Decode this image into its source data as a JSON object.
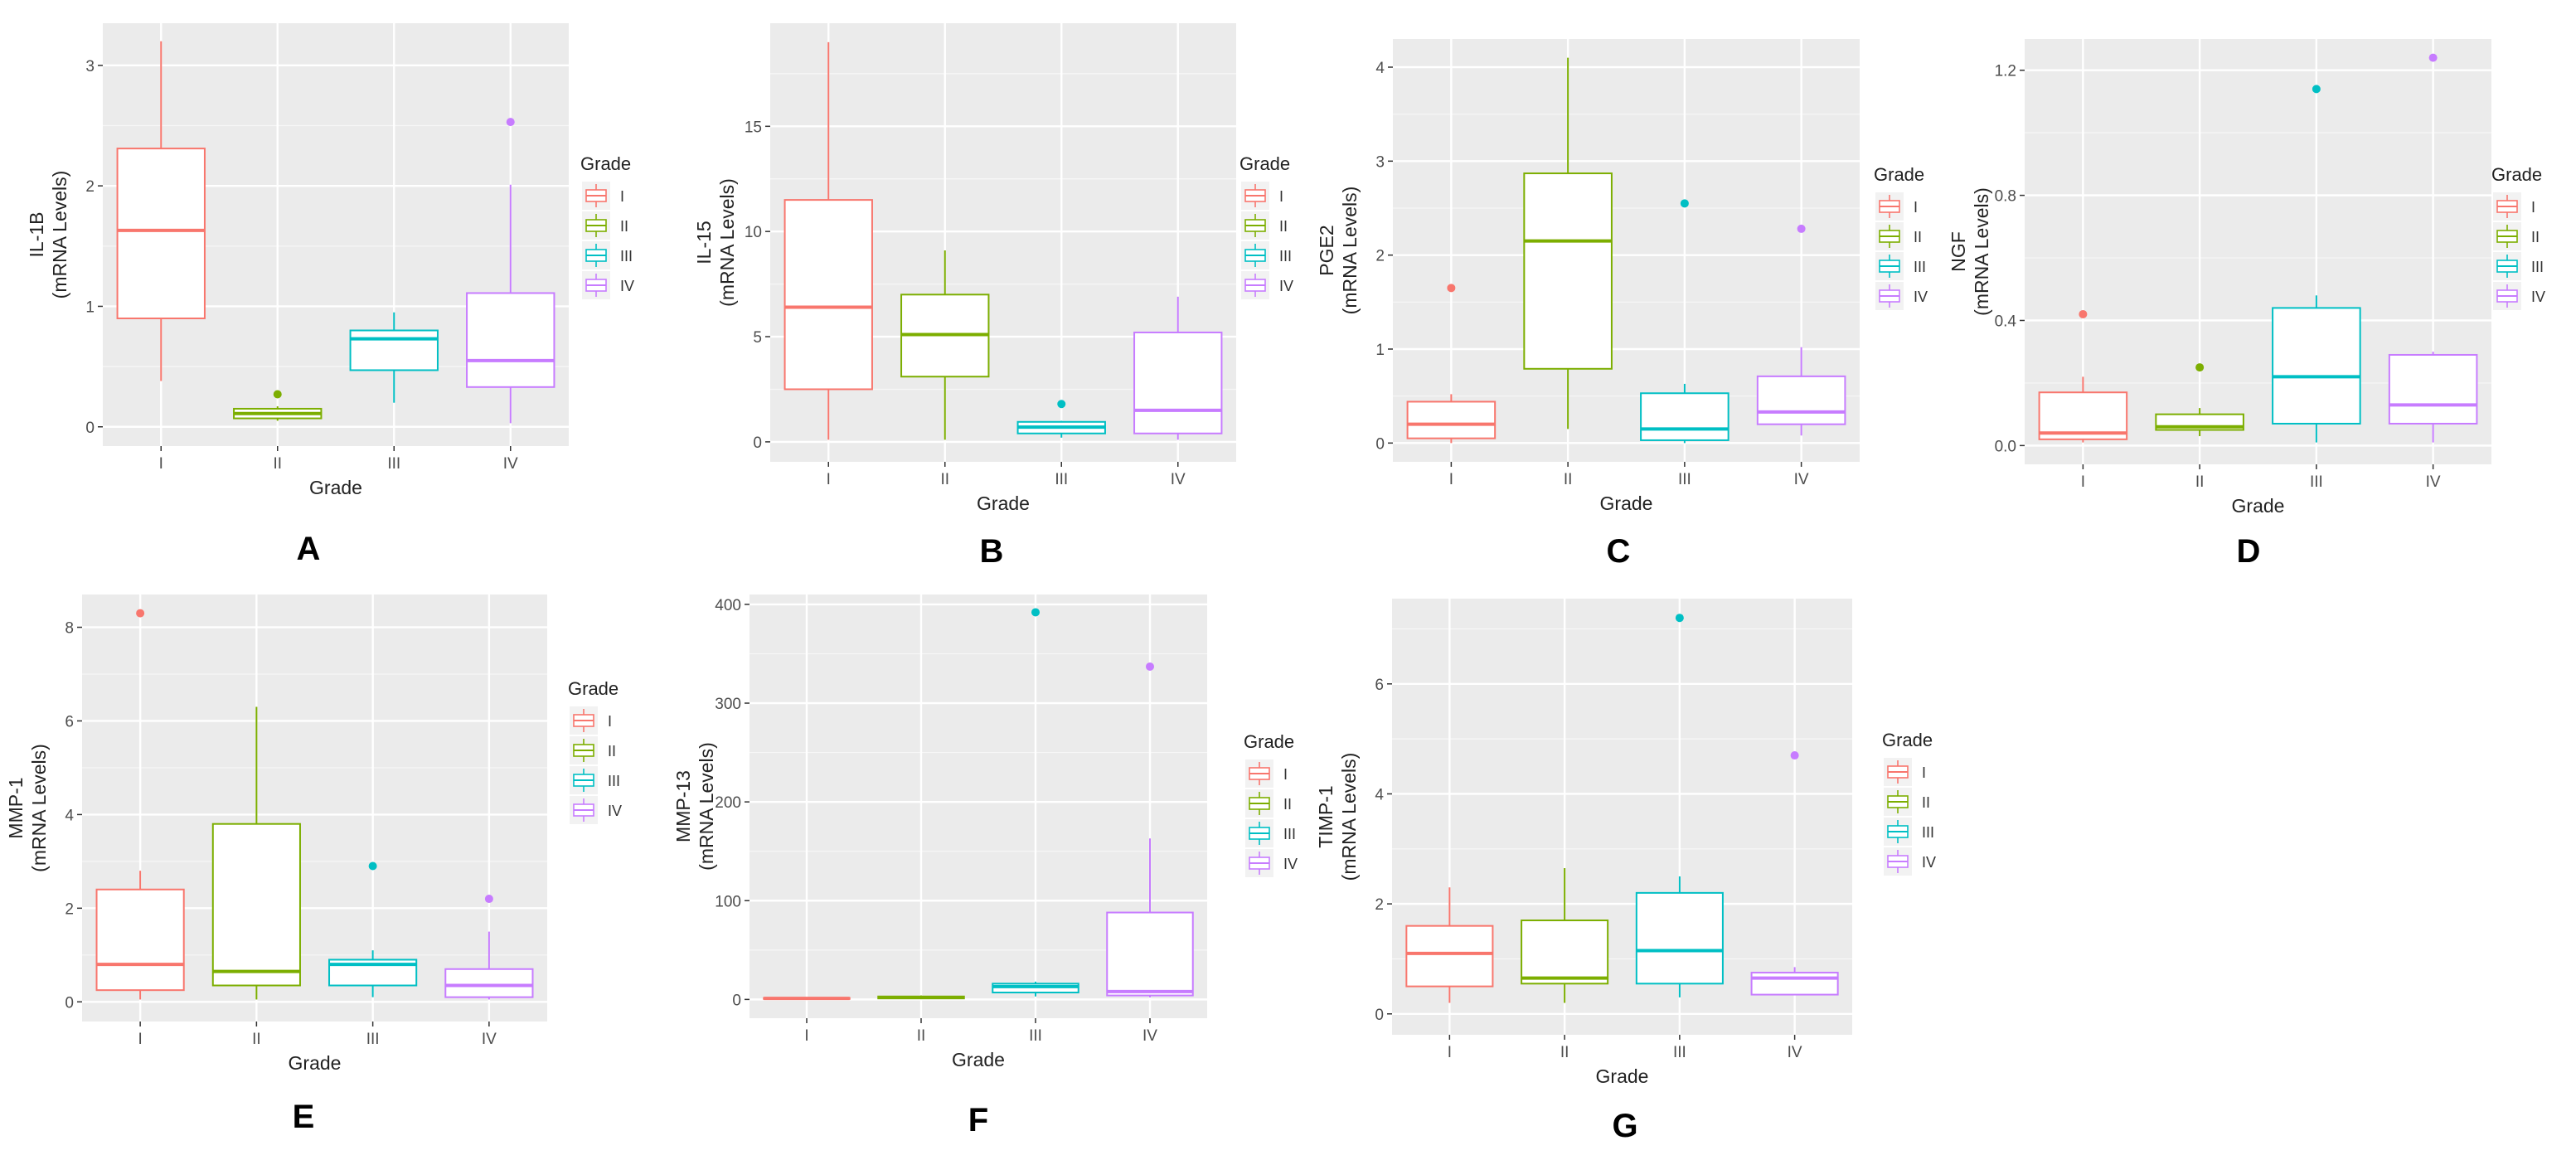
{
  "legend_title": "Grade",
  "chart_data": [
    {
      "type": "boxplot",
      "panel_letter": "A",
      "xlabel": "Grade",
      "ylabel_line1": "IL-1B",
      "ylabel_line2": "(mRNA Levels)",
      "ylim": [
        -0.16,
        3.35
      ],
      "yticks": [
        0,
        1,
        2,
        3
      ],
      "groups": [
        {
          "name": "I",
          "color": "#F8766D",
          "min": 0.38,
          "q1": 0.9,
          "median": 1.63,
          "q3": 2.31,
          "max": 3.2,
          "outliers": []
        },
        {
          "name": "II",
          "color": "#7CAE00",
          "min": 0.05,
          "q1": 0.07,
          "median": 0.11,
          "q3": 0.15,
          "max": 0.17,
          "outliers": [
            0.27
          ]
        },
        {
          "name": "III",
          "color": "#00BFC4",
          "min": 0.2,
          "q1": 0.47,
          "median": 0.73,
          "q3": 0.8,
          "max": 0.95,
          "outliers": []
        },
        {
          "name": "IV",
          "color": "#C77CFF",
          "min": 0.03,
          "q1": 0.33,
          "median": 0.55,
          "q3": 1.11,
          "max": 2.01,
          "outliers": [
            2.53
          ]
        }
      ]
    },
    {
      "type": "boxplot",
      "panel_letter": "B",
      "xlabel": "Grade",
      "ylabel_line1": "IL-15",
      "ylabel_line2": "(mRNA Levels)",
      "ylim": [
        -0.95,
        19.9
      ],
      "yticks": [
        0,
        5,
        10,
        15
      ],
      "groups": [
        {
          "name": "I",
          "color": "#F8766D",
          "min": 0.1,
          "q1": 2.5,
          "median": 6.4,
          "q3": 11.5,
          "max": 19.0,
          "outliers": []
        },
        {
          "name": "II",
          "color": "#7CAE00",
          "min": 0.1,
          "q1": 3.1,
          "median": 5.1,
          "q3": 7.0,
          "max": 9.1,
          "outliers": []
        },
        {
          "name": "III",
          "color": "#00BFC4",
          "min": 0.2,
          "q1": 0.4,
          "median": 0.7,
          "q3": 0.95,
          "max": 1.0,
          "outliers": [
            1.8
          ]
        },
        {
          "name": "IV",
          "color": "#C77CFF",
          "min": 0.1,
          "q1": 0.4,
          "median": 1.5,
          "q3": 5.2,
          "max": 6.9,
          "outliers": []
        }
      ]
    },
    {
      "type": "boxplot",
      "panel_letter": "C",
      "xlabel": "Grade",
      "ylabel_line1": "PGE2",
      "ylabel_line2": "(mRNA Levels)",
      "ylim": [
        -0.2,
        4.3
      ],
      "yticks": [
        0,
        1,
        2,
        3,
        4
      ],
      "groups": [
        {
          "name": "I",
          "color": "#F8766D",
          "min": 0.0,
          "q1": 0.05,
          "median": 0.2,
          "q3": 0.44,
          "max": 0.52,
          "outliers": [
            1.65
          ]
        },
        {
          "name": "II",
          "color": "#7CAE00",
          "min": 0.15,
          "q1": 0.79,
          "median": 2.15,
          "q3": 2.87,
          "max": 4.1,
          "outliers": []
        },
        {
          "name": "III",
          "color": "#00BFC4",
          "min": 0.0,
          "q1": 0.03,
          "median": 0.15,
          "q3": 0.53,
          "max": 0.63,
          "outliers": [
            2.55
          ]
        },
        {
          "name": "IV",
          "color": "#C77CFF",
          "min": 0.08,
          "q1": 0.2,
          "median": 0.33,
          "q3": 0.71,
          "max": 1.02,
          "outliers": [
            2.28
          ]
        }
      ]
    },
    {
      "type": "boxplot",
      "panel_letter": "D",
      "xlabel": "Grade",
      "ylabel_line1": "NGF",
      "ylabel_line2": "(mRNA Levels)",
      "ylim": [
        -0.06,
        1.3
      ],
      "yticks": [
        0.0,
        0.4,
        0.8,
        1.2
      ],
      "ytick_labels": [
        "0.0",
        "0.4",
        "0.8",
        "1.2"
      ],
      "groups": [
        {
          "name": "I",
          "color": "#F8766D",
          "min": 0.01,
          "q1": 0.02,
          "median": 0.04,
          "q3": 0.17,
          "max": 0.22,
          "outliers": [
            0.42
          ]
        },
        {
          "name": "II",
          "color": "#7CAE00",
          "min": 0.03,
          "q1": 0.05,
          "median": 0.06,
          "q3": 0.1,
          "max": 0.12,
          "outliers": [
            0.25
          ]
        },
        {
          "name": "III",
          "color": "#00BFC4",
          "min": 0.01,
          "q1": 0.07,
          "median": 0.22,
          "q3": 0.44,
          "max": 0.48,
          "outliers": [
            1.14
          ]
        },
        {
          "name": "IV",
          "color": "#C77CFF",
          "min": 0.01,
          "q1": 0.07,
          "median": 0.13,
          "q3": 0.29,
          "max": 0.3,
          "outliers": [
            1.24
          ]
        }
      ]
    },
    {
      "type": "boxplot",
      "panel_letter": "E",
      "xlabel": "Grade",
      "ylabel_line1": "MMP-1",
      "ylabel_line2": "(mRNA Levels)",
      "ylim": [
        -0.42,
        8.7
      ],
      "yticks": [
        0,
        2,
        4,
        6,
        8
      ],
      "groups": [
        {
          "name": "I",
          "color": "#F8766D",
          "min": 0.05,
          "q1": 0.25,
          "median": 0.8,
          "q3": 2.4,
          "max": 2.8,
          "outliers": [
            8.3
          ]
        },
        {
          "name": "II",
          "color": "#7CAE00",
          "min": 0.05,
          "q1": 0.35,
          "median": 0.65,
          "q3": 3.8,
          "max": 6.3,
          "outliers": []
        },
        {
          "name": "III",
          "color": "#00BFC4",
          "min": 0.1,
          "q1": 0.35,
          "median": 0.8,
          "q3": 0.9,
          "max": 1.1,
          "outliers": [
            2.9
          ]
        },
        {
          "name": "IV",
          "color": "#C77CFF",
          "min": 0.05,
          "q1": 0.1,
          "median": 0.35,
          "q3": 0.7,
          "max": 1.5,
          "outliers": [
            2.2
          ]
        }
      ]
    },
    {
      "type": "boxplot",
      "panel_letter": "F",
      "xlabel": "Grade",
      "ylabel_line1": "MMP-13",
      "ylabel_line2": "(mRNA Levels)",
      "ylim": [
        -19,
        410
      ],
      "yticks": [
        0,
        100,
        200,
        300,
        400
      ],
      "groups": [
        {
          "name": "I",
          "color": "#F8766D",
          "min": 0.2,
          "q1": 0.5,
          "median": 1.0,
          "q3": 1.5,
          "max": 2.0,
          "outliers": []
        },
        {
          "name": "II",
          "color": "#7CAE00",
          "min": 0.5,
          "q1": 1.0,
          "median": 2.0,
          "q3": 3.0,
          "max": 4.0,
          "outliers": []
        },
        {
          "name": "III",
          "color": "#00BFC4",
          "min": 3,
          "q1": 7,
          "median": 13,
          "q3": 16,
          "max": 18,
          "outliers": [
            392
          ]
        },
        {
          "name": "IV",
          "color": "#C77CFF",
          "min": 2,
          "q1": 4,
          "median": 8,
          "q3": 88,
          "max": 163,
          "outliers": [
            337
          ]
        }
      ]
    },
    {
      "type": "boxplot",
      "panel_letter": "G",
      "xlabel": "Grade",
      "ylabel_line1": "TIMP-1",
      "ylabel_line2": "(mRNA Levels)",
      "ylim": [
        -0.38,
        7.55
      ],
      "yticks": [
        0,
        2,
        4,
        6
      ],
      "groups": [
        {
          "name": "I",
          "color": "#F8766D",
          "min": 0.2,
          "q1": 0.5,
          "median": 1.1,
          "q3": 1.6,
          "max": 2.3,
          "outliers": []
        },
        {
          "name": "II",
          "color": "#7CAE00",
          "min": 0.2,
          "q1": 0.55,
          "median": 0.65,
          "q3": 1.7,
          "max": 2.65,
          "outliers": []
        },
        {
          "name": "III",
          "color": "#00BFC4",
          "min": 0.3,
          "q1": 0.55,
          "median": 1.15,
          "q3": 2.2,
          "max": 2.5,
          "outliers": [
            7.2
          ]
        },
        {
          "name": "IV",
          "color": "#C77CFF",
          "min": 0.35,
          "q1": 0.35,
          "median": 0.65,
          "q3": 0.75,
          "max": 0.85,
          "outliers": [
            4.7
          ]
        }
      ]
    }
  ]
}
